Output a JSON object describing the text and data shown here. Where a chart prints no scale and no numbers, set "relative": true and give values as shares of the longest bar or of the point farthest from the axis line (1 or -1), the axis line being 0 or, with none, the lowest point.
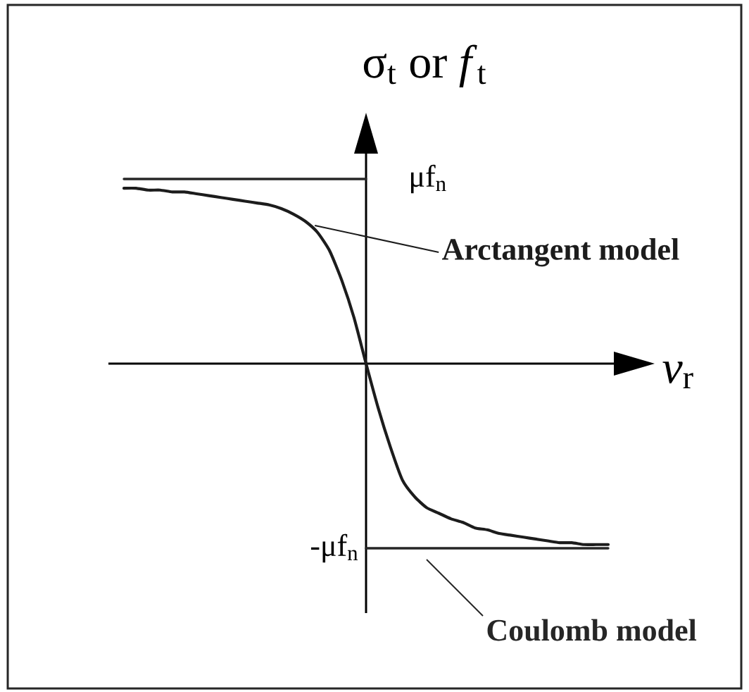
{
  "chart_data": {
    "type": "line",
    "relative": true,
    "xlabel": "*v*$_{r}$",
    "ylabel": "σ$_{t}$ or *f*$_{t}$",
    "categories": [
      null,
      null,
      null,
      null,
      null,
      null,
      null,
      null,
      null,
      null,
      null,
      null,
      null,
      null,
      null,
      null,
      null,
      null,
      null,
      null,
      null,
      null,
      null,
      null,
      null,
      null,
      null,
      null,
      null,
      null,
      null,
      null,
      null,
      null,
      null,
      null,
      null,
      null,
      null,
      null,
      null
    ],
    "series": [
      {
        "name": "Arctangent model",
        "color": "#1c1c1c",
        "values": [
          0.95,
          0.95,
          0.94,
          0.94,
          0.93,
          0.93,
          0.92,
          0.91,
          0.9,
          0.89,
          0.88,
          0.87,
          0.86,
          0.84,
          0.81,
          0.77,
          0.71,
          0.61,
          0.45,
          0.25,
          0,
          -0.24,
          -0.45,
          -0.63,
          -0.72,
          -0.78,
          -0.81,
          -0.84,
          -0.86,
          -0.89,
          -0.9,
          -0.92,
          -0.93,
          -0.94,
          -0.95,
          -0.96,
          -0.97,
          -0.97,
          -0.98,
          -0.98,
          -0.98
        ]
      },
      {
        "name": "Coulomb model",
        "type": "step",
        "color": "#262626",
        "values": [
          1,
          1,
          1,
          1,
          1,
          1,
          1,
          1,
          1,
          1,
          1,
          1,
          1,
          1,
          1,
          1,
          1,
          1,
          1,
          1,
          1,
          -1,
          -1,
          -1,
          -1,
          -1,
          -1,
          -1,
          -1,
          -1,
          -1,
          -1,
          -1,
          -1,
          -1,
          -1,
          -1,
          -1,
          -1,
          -1,
          -1
        ]
      }
    ],
    "annotations": [
      "μf$_{n}$",
      "-μf$_{n}$"
    ]
  }
}
